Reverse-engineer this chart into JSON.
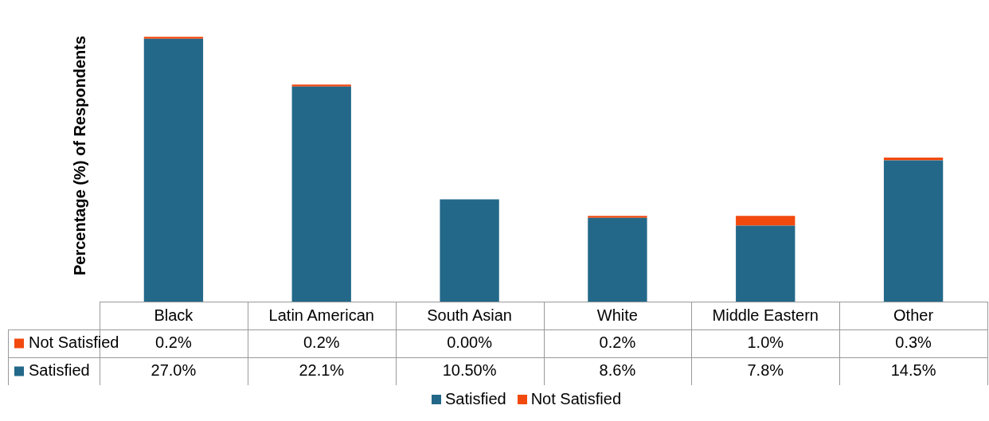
{
  "chart_data": {
    "type": "bar",
    "ylabel": "Percentage (%) of Respondents",
    "stacked": true,
    "legend": "bottom",
    "grid": false,
    "categories": [
      "Black",
      "Latin American",
      "South Asian",
      "White",
      "Middle Eastern",
      "Other"
    ],
    "series": [
      {
        "name": "Satisfied",
        "color": "#236889",
        "values": [
          27.0,
          22.1,
          10.5,
          8.6,
          7.8,
          14.5
        ],
        "value_labels": [
          "27.0%",
          "22.1%",
          "10.50%",
          "8.6%",
          "7.8%",
          "14.5%"
        ]
      },
      {
        "name": "Not Satisfied",
        "color": "#f2490f",
        "values": [
          0.2,
          0.2,
          0.0,
          0.2,
          1.0,
          0.3
        ],
        "value_labels": [
          "0.2%",
          "0.2%",
          "0.00%",
          "0.2%",
          "1.0%",
          "0.3%"
        ]
      }
    ]
  }
}
